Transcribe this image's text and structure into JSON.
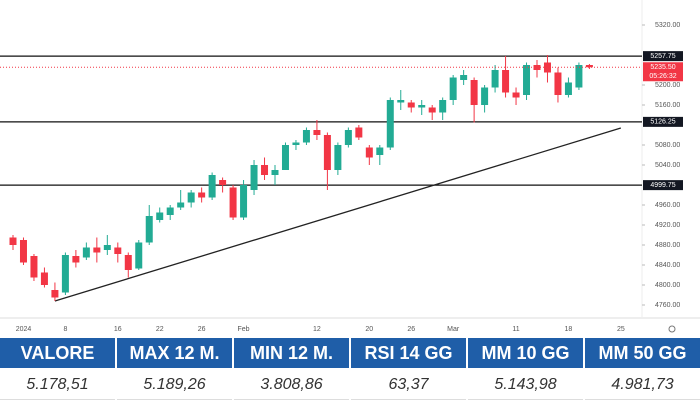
{
  "chart_data": {
    "type": "candlestick",
    "categories": [
      null,
      "2024",
      null,
      null,
      null,
      "8",
      null,
      null,
      null,
      null,
      "16",
      null,
      null,
      null,
      "22",
      null,
      null,
      null,
      "26",
      null,
      null,
      null,
      "Feb",
      null,
      null,
      null,
      null,
      null,
      null,
      "12",
      null,
      null,
      null,
      null,
      "20",
      null,
      null,
      null,
      "26",
      null,
      null,
      null,
      "Mar",
      null,
      null,
      null,
      null,
      null,
      "11",
      null,
      null,
      null,
      null,
      "18",
      null,
      null,
      null,
      null,
      "25"
    ],
    "open": [
      4895,
      4890,
      4858,
      4825,
      4790,
      4785,
      4858,
      4855,
      4875,
      4870,
      4875,
      4860,
      4833,
      4885,
      4930,
      4940,
      4955,
      4965,
      4985,
      4975,
      5010,
      4995,
      4935,
      4990,
      5040,
      5020,
      5030,
      5080,
      5085,
      5110,
      5100,
      5030,
      5080,
      5115,
      5075,
      5060,
      5075,
      5165,
      5165,
      5155,
      5155,
      5145,
      5170,
      5210,
      5210,
      5160,
      5195,
      5230,
      5185,
      5180,
      5240,
      5245,
      5225,
      5180,
      5195,
      5240,
      null,
      null,
      null
    ],
    "high": [
      4900,
      4895,
      4862,
      4835,
      4805,
      4865,
      4870,
      4885,
      4895,
      4900,
      4885,
      4865,
      4890,
      4960,
      4955,
      4960,
      4990,
      4990,
      4995,
      5025,
      5015,
      5000,
      5010,
      5050,
      5055,
      5040,
      5085,
      5090,
      5115,
      5130,
      5105,
      5085,
      5115,
      5120,
      5080,
      5080,
      5175,
      5190,
      5170,
      5170,
      5160,
      5175,
      5220,
      5230,
      5215,
      5200,
      5240,
      5258,
      5195,
      5245,
      5250,
      5260,
      5235,
      5215,
      5245,
      5242,
      null,
      null,
      null
    ],
    "low": [
      4870,
      4840,
      4808,
      4795,
      4768,
      4780,
      4835,
      4850,
      4845,
      4860,
      4845,
      4815,
      4830,
      4880,
      4925,
      4930,
      4950,
      4955,
      4965,
      4970,
      4985,
      4930,
      4930,
      4980,
      5010,
      5000,
      5030,
      5070,
      5080,
      5090,
      4990,
      5020,
      5075,
      5090,
      5040,
      5040,
      5070,
      5150,
      5145,
      5140,
      5130,
      5130,
      5160,
      5200,
      5125,
      5145,
      5185,
      5175,
      5160,
      5170,
      5215,
      5205,
      5165,
      5175,
      5190,
      5232,
      null,
      null,
      null
    ],
    "close": [
      4880,
      4845,
      4815,
      4800,
      4775,
      4860,
      4845,
      4875,
      4865,
      4880,
      4862,
      4830,
      4885,
      4938,
      4945,
      4955,
      4965,
      4985,
      4975,
      5020,
      5000,
      4935,
      5000,
      5040,
      5020,
      5030,
      5080,
      5085,
      5110,
      5100,
      5030,
      5080,
      5110,
      5095,
      5055,
      5075,
      5170,
      5170,
      5155,
      5160,
      5145,
      5170,
      5215,
      5220,
      5160,
      5195,
      5230,
      5185,
      5175,
      5240,
      5230,
      5225,
      5180,
      5205,
      5240,
      5235.5,
      null,
      null,
      null
    ],
    "up_color": "#22ab94",
    "down_color": "#f23645",
    "ylim": [
      4740,
      5350
    ],
    "yticks": [
      {
        "value": 5320,
        "label": "5320.00"
      },
      {
        "value": 5200,
        "label": "5200.00"
      },
      {
        "value": 5160,
        "label": "5160.00"
      },
      {
        "value": 5080,
        "label": "5080.00"
      },
      {
        "value": 5040,
        "label": "5040.00"
      },
      {
        "value": 4960,
        "label": "4960.00"
      },
      {
        "value": 4920,
        "label": "4920.00"
      },
      {
        "value": 4880,
        "label": "4880.00"
      },
      {
        "value": 4840,
        "label": "4840.00"
      },
      {
        "value": 4800,
        "label": "4800.00"
      },
      {
        "value": 4760,
        "label": "4760.00"
      }
    ],
    "price_lines": [
      {
        "value": 5257.75,
        "label": "5257.75"
      },
      {
        "value": 5126.25,
        "label": "5126.25"
      },
      {
        "value": 4999.75,
        "label": "4999.75"
      }
    ],
    "last_price": {
      "value": 5235.5,
      "label": "5235.50",
      "countdown": "05:26:32"
    },
    "trendline": [
      4768,
      5114
    ]
  },
  "table": {
    "header": [
      "VALORE",
      "MAX 12 M.",
      "MIN 12 M.",
      "RSI 14 GG",
      "MM 10 GG",
      "MM 50 GG"
    ],
    "rows": [
      [
        "5.178,51",
        "5.189,26",
        "3.808,86",
        "63,37",
        "5.143,98",
        "4.981,73"
      ]
    ]
  }
}
